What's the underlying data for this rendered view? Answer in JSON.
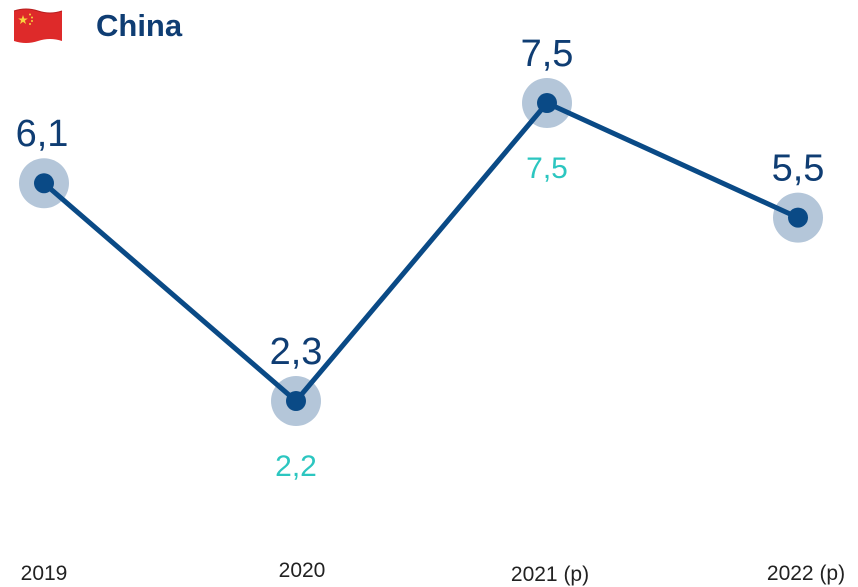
{
  "header": {
    "title": "China",
    "flag_icon": "china-flag-icon"
  },
  "colors": {
    "line": "#0a4a86",
    "marker_halo": "#b4c6d9",
    "value_label": "#0f3d73",
    "alt_value_label": "#2cc6c0",
    "tick_label": "#222222",
    "flag_red": "#de2a2a",
    "flag_star": "#f7d23e"
  },
  "chart_data": {
    "type": "line",
    "title": "China",
    "categories": [
      "2019",
      "2020",
      "2021 (p)",
      "2022 (p)"
    ],
    "series": [
      {
        "values": [
          6.1,
          2.3,
          7.5,
          5.5
        ]
      },
      {
        "values": [
          null,
          2.2,
          7.5,
          null
        ]
      }
    ],
    "value_labels": [
      "6,1",
      "2,3",
      "7,5",
      "5,5"
    ],
    "secondary_value_labels": [
      null,
      "2,2",
      "7,5",
      null
    ],
    "ylim": [
      2.3,
      7.5
    ],
    "grid": false,
    "legend": "none"
  }
}
